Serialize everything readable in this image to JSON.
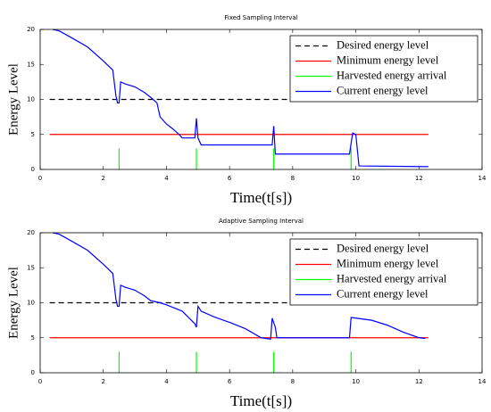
{
  "chart_data": [
    {
      "type": "line",
      "title": "Fixed Sampling Interval",
      "xlabel": "Time(t[s])",
      "ylabel": "Energy Level",
      "xlim": [
        0,
        14
      ],
      "ylim": [
        0,
        20
      ],
      "xticks": [
        0,
        2,
        4,
        6,
        8,
        10,
        12,
        14
      ],
      "yticks": [
        0,
        5,
        10,
        15,
        20
      ],
      "legend": "upper right",
      "grid": false,
      "series": [
        {
          "name": "Desired energy level",
          "color": "#000000",
          "linestyle": "dashed",
          "x": [
            0.3,
            12.3
          ],
          "values": [
            10,
            10
          ]
        },
        {
          "name": "Minimum energy level",
          "color": "#ff0000",
          "linestyle": "solid",
          "x": [
            0.3,
            12.3
          ],
          "values": [
            5,
            5
          ]
        },
        {
          "name": "Harvested energy arrival",
          "color": "#00ff00",
          "linestyle": "solid",
          "x": [
            2.5,
            2.5,
            2.5,
            4.95,
            4.95,
            4.95,
            7.4,
            7.4,
            7.4,
            9.85,
            9.85
          ],
          "values": [
            0,
            3,
            null,
            0,
            3,
            null,
            0,
            3,
            null,
            0,
            3
          ]
        },
        {
          "name": "Current energy level",
          "color": "#0000ff",
          "linestyle": "solid",
          "x": [
            0.4,
            0.6,
            1,
            1.5,
            2,
            2.3,
            2.4,
            2.45,
            2.5,
            2.55,
            2.7,
            3,
            3.3,
            3.5,
            3.7,
            3.8,
            4,
            4.2,
            4.4,
            4.5,
            4.9,
            4.95,
            5,
            5.1,
            7.35,
            7.4,
            7.45,
            9.8,
            9.9,
            10,
            10.1,
            12.3
          ],
          "values": [
            20,
            19.8,
            18.8,
            17.5,
            15.5,
            14.2,
            10.5,
            9.5,
            9.5,
            12.5,
            12.2,
            11.8,
            11,
            10.3,
            9.5,
            7.5,
            6.5,
            5.8,
            5,
            4.5,
            4.5,
            7.3,
            4.5,
            3.5,
            3.5,
            6.2,
            2.2,
            2.2,
            5.2,
            5,
            0.5,
            0.4
          ]
        }
      ]
    },
    {
      "type": "line",
      "title": "Adaptive Sampling Interval",
      "xlabel": "Time(t[s])",
      "ylabel": "Energy Level",
      "xlim": [
        0,
        14
      ],
      "ylim": [
        0,
        20
      ],
      "xticks": [
        0,
        2,
        4,
        6,
        8,
        10,
        12,
        14
      ],
      "yticks": [
        0,
        5,
        10,
        15,
        20
      ],
      "legend": "upper right",
      "grid": false,
      "series": [
        {
          "name": "Desired energy level",
          "color": "#000000",
          "linestyle": "dashed",
          "x": [
            0.3,
            12.3
          ],
          "values": [
            10,
            10
          ]
        },
        {
          "name": "Minimum energy level",
          "color": "#ff0000",
          "linestyle": "solid",
          "x": [
            0.3,
            12.3
          ],
          "values": [
            5,
            5
          ]
        },
        {
          "name": "Harvested energy arrival",
          "color": "#00ff00",
          "linestyle": "solid",
          "x": [
            2.5,
            2.5,
            2.5,
            4.95,
            4.95,
            4.95,
            7.4,
            7.4,
            7.4,
            9.85,
            9.85
          ],
          "values": [
            0,
            3,
            null,
            0,
            3,
            null,
            0,
            3,
            null,
            0,
            3
          ]
        },
        {
          "name": "Current energy level",
          "color": "#0000ff",
          "linestyle": "solid",
          "x": [
            0.4,
            0.6,
            1,
            1.5,
            2,
            2.3,
            2.4,
            2.45,
            2.5,
            2.55,
            2.7,
            3,
            3.3,
            3.5,
            3.8,
            4,
            4.5,
            4.9,
            4.95,
            5,
            5.1,
            5.5,
            6,
            6.5,
            7,
            7.3,
            7.35,
            7.45,
            7.5,
            9.8,
            9.85,
            10.5,
            11,
            11.5,
            12,
            12.2
          ],
          "values": [
            20,
            19.8,
            18.8,
            17.5,
            15.5,
            14.2,
            10.5,
            9.5,
            9.5,
            12.5,
            12.2,
            11.8,
            11,
            10.3,
            10,
            9.7,
            8.8,
            7,
            6.5,
            9.5,
            8.8,
            8,
            7.2,
            6.3,
            5,
            4.8,
            7.8,
            6.5,
            5,
            5,
            7.9,
            7.5,
            6.8,
            5.8,
            5,
            4.9
          ]
        }
      ]
    }
  ]
}
